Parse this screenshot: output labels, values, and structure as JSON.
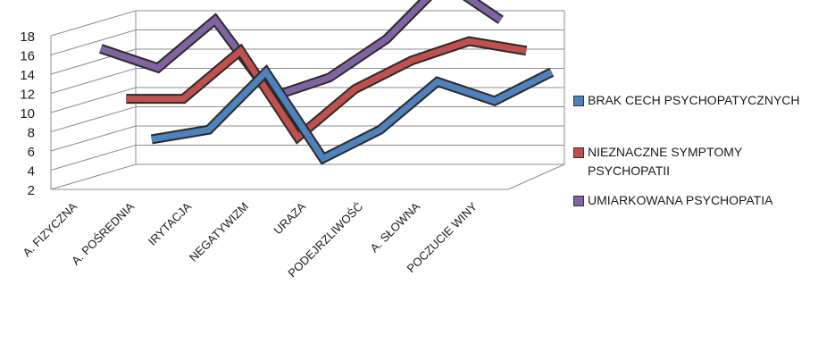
{
  "chart_data": {
    "type": "line",
    "categories": [
      "A. FIZYCZNA",
      "A. POŚREDNIA",
      "IRYTACJA",
      "NEGATYWIZM",
      "URAZA",
      "PODEJRZLIWOŚĆ",
      "A. SŁOWNA",
      "POCZUCIE WINY"
    ],
    "series": [
      {
        "name": "BRAK CECH PSYCHOPATYCZNYCH",
        "color": "#4f81bd",
        "values": [
          5,
          6,
          12,
          3,
          6,
          11,
          9,
          12
        ]
      },
      {
        "name": "NIEZNACZNE SYMPTOMY PSYCHOPATII",
        "color": "#c0504d",
        "values": [
          10,
          10,
          15,
          6,
          11,
          14,
          16,
          15
        ]
      },
      {
        "name": "UMIARKOWANA PSYCHOPATIA",
        "color": "#8064a2",
        "values": [
          16,
          14,
          19,
          11,
          13,
          17,
          23,
          19
        ]
      }
    ],
    "y_ticks": [
      "18",
      "16",
      "14",
      "12",
      "10",
      "8",
      "6",
      "4",
      "2"
    ],
    "ylim": [
      2,
      18
    ],
    "grid": true,
    "legend_position": "right",
    "style": "3d-line"
  }
}
